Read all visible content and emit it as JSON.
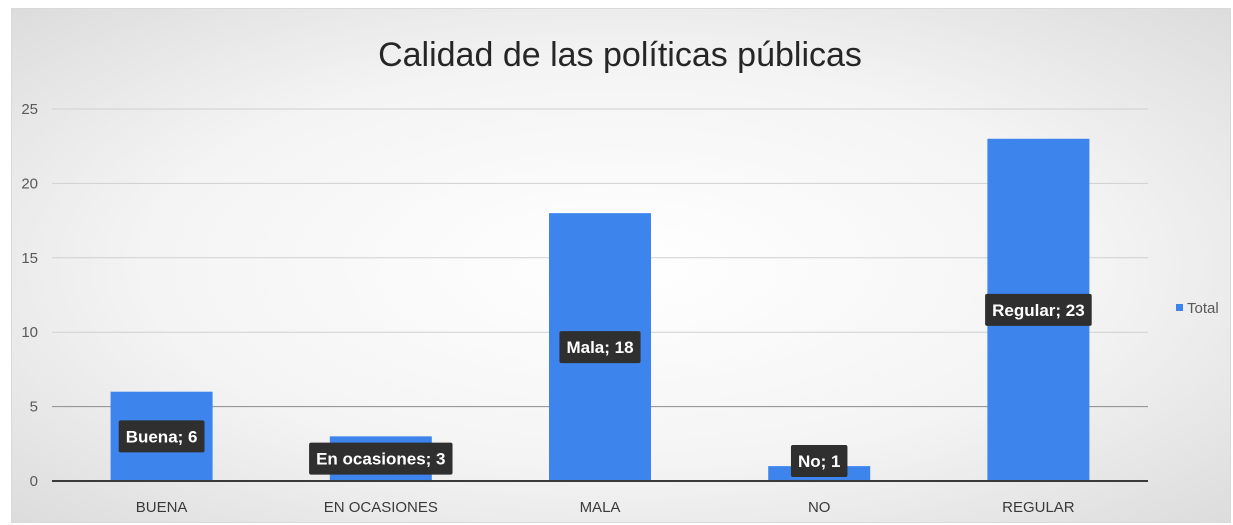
{
  "chart_data": {
    "type": "bar",
    "title": "Calidad de las políticas públicas",
    "xlabel": "",
    "ylabel": "",
    "categories": [
      "BUENA",
      "EN OCASIONES",
      "MALA",
      "NO",
      "REGULAR"
    ],
    "series": [
      {
        "name": "Total",
        "color": "#3d84ec",
        "values": [
          6,
          3,
          18,
          1,
          23
        ],
        "data_labels": [
          "Buena; 6",
          "En ocasiones; 3",
          "Mala; 18",
          "No; 1",
          "Regular; 23"
        ]
      }
    ],
    "ylim": [
      0,
      25
    ],
    "yticks": [
      0,
      5,
      10,
      15,
      20,
      25
    ],
    "grid": true,
    "legend": "right"
  }
}
